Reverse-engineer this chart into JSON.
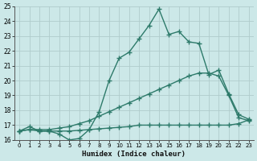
{
  "line1_x": [
    0,
    1,
    2,
    3,
    4,
    5,
    6,
    7,
    8,
    9,
    10,
    11,
    12,
    13,
    14,
    15,
    16,
    17,
    18,
    19,
    20,
    21,
    22,
    23
  ],
  "line1_y": [
    16.6,
    16.9,
    16.6,
    16.6,
    16.4,
    16.0,
    16.1,
    16.7,
    17.9,
    20.0,
    21.5,
    21.9,
    22.8,
    23.7,
    24.8,
    23.1,
    23.3,
    22.6,
    22.5,
    20.4,
    20.7,
    19.1,
    17.7,
    17.4
  ],
  "line2_x": [
    0,
    1,
    2,
    3,
    4,
    5,
    6,
    7,
    8,
    9,
    10,
    11,
    12,
    13,
    14,
    15,
    16,
    17,
    18,
    19,
    20,
    21,
    22,
    23
  ],
  "line2_y": [
    16.6,
    16.7,
    16.7,
    16.7,
    16.8,
    16.9,
    17.1,
    17.3,
    17.6,
    17.9,
    18.2,
    18.5,
    18.8,
    19.1,
    19.4,
    19.7,
    20.0,
    20.3,
    20.5,
    20.5,
    20.3,
    19.0,
    17.5,
    17.3
  ],
  "line3_x": [
    0,
    1,
    2,
    3,
    4,
    5,
    6,
    7,
    8,
    9,
    10,
    11,
    12,
    13,
    14,
    15,
    16,
    17,
    18,
    19,
    20,
    21,
    22,
    23
  ],
  "line3_y": [
    16.6,
    16.7,
    16.6,
    16.6,
    16.6,
    16.6,
    16.65,
    16.7,
    16.75,
    16.8,
    16.85,
    16.9,
    17.0,
    17.0,
    17.0,
    17.0,
    17.0,
    17.0,
    17.0,
    17.0,
    17.0,
    17.0,
    17.1,
    17.35
  ],
  "color": "#2d7a6a",
  "bg_color": "#cce8e8",
  "grid_color": "#b8d8d8",
  "xlim": [
    -0.5,
    23.5
  ],
  "ylim": [
    16,
    25
  ],
  "yticks": [
    16,
    17,
    18,
    19,
    20,
    21,
    22,
    23,
    24,
    25
  ],
  "xticks": [
    0,
    1,
    2,
    3,
    4,
    5,
    6,
    7,
    8,
    9,
    10,
    11,
    12,
    13,
    14,
    15,
    16,
    17,
    18,
    19,
    20,
    21,
    22,
    23
  ],
  "xlabel": "Humidex (Indice chaleur)",
  "marker": "+",
  "linewidth": 1.0,
  "markersize": 4
}
